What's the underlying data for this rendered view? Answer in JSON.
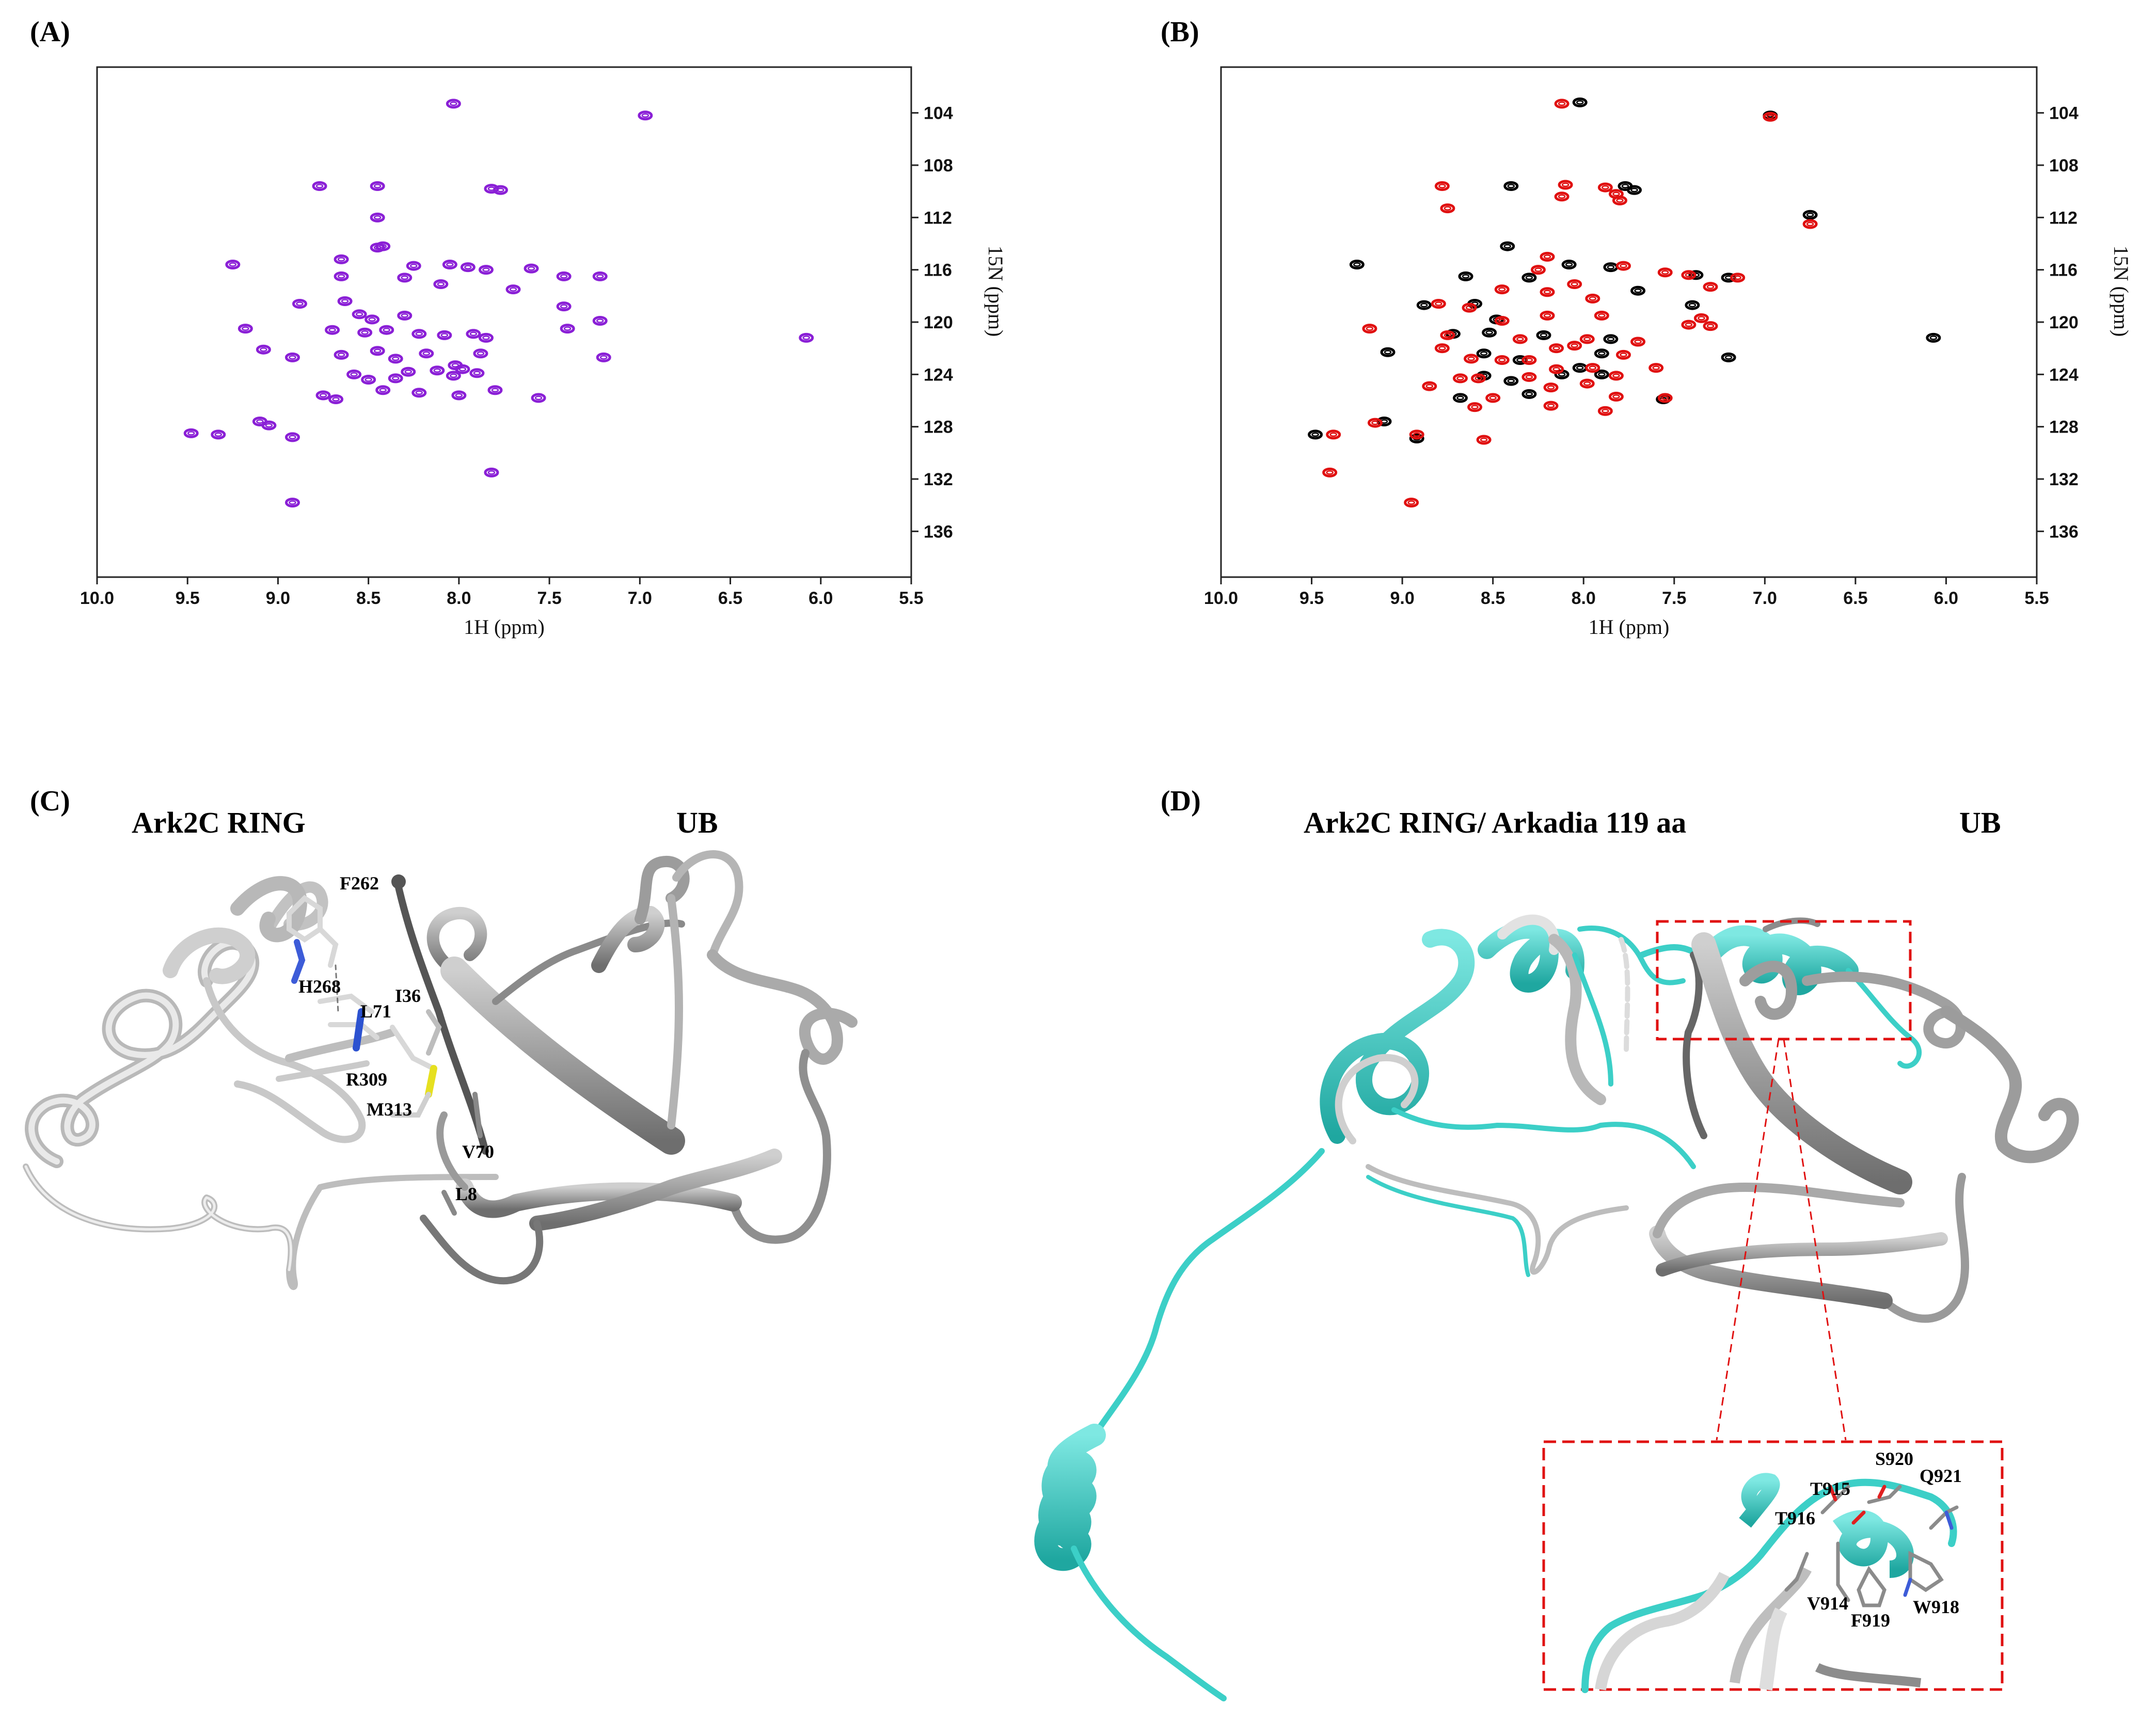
{
  "panels": {
    "a": {
      "label": "(A)"
    },
    "b": {
      "label": "(B)"
    },
    "c": {
      "label": "(C)",
      "title_left": "Ark2C RING",
      "title_right": "UB",
      "residues": [
        "F262",
        "H268",
        "L71",
        "I36",
        "R309",
        "M313",
        "V70",
        "L8"
      ]
    },
    "d": {
      "label": "(D)",
      "title_left": "Ark2C RING/ Arkadia 119 aa",
      "title_right": "UB",
      "inset_residues": [
        "S920",
        "Q921",
        "T915",
        "T916",
        "V914",
        "F919",
        "W918"
      ]
    }
  },
  "colors": {
    "purple": "#8a1fd6",
    "red": "#e01010",
    "black": "#000000",
    "cyan": "#3ccfc7",
    "gray": "#9a9a9a",
    "light_gray": "#d4d4d4",
    "dashed_red": "#e01010"
  },
  "chart_data": [
    {
      "type": "scatter",
      "panel": "(A)",
      "xlabel": "1H (ppm)",
      "ylabel": "15N (ppm)",
      "xlim": [
        10.0,
        5.5
      ],
      "ylim": [
        100.5,
        139.5
      ],
      "x_ticks": [
        "10.0",
        "9.5",
        "9.0",
        "8.5",
        "8.0",
        "7.5",
        "7.0",
        "6.5",
        "6.0",
        "5.5"
      ],
      "y_ticks": [
        "104",
        "108",
        "112",
        "116",
        "120",
        "124",
        "128",
        "132",
        "136"
      ],
      "series": [
        {
          "color": "#8a1fd6",
          "points": [
            [
              8.03,
              103.3
            ],
            [
              6.97,
              104.2
            ],
            [
              8.77,
              109.6
            ],
            [
              8.45,
              109.6
            ],
            [
              7.82,
              109.8
            ],
            [
              7.77,
              109.9
            ],
            [
              8.45,
              112.0
            ],
            [
              9.25,
              115.6
            ],
            [
              8.65,
              115.2
            ],
            [
              8.45,
              114.3
            ],
            [
              8.42,
              114.2
            ],
            [
              8.25,
              115.7
            ],
            [
              8.05,
              115.6
            ],
            [
              7.95,
              115.8
            ],
            [
              7.85,
              116.0
            ],
            [
              7.6,
              115.9
            ],
            [
              7.42,
              116.5
            ],
            [
              7.22,
              116.5
            ],
            [
              8.65,
              116.5
            ],
            [
              8.3,
              116.6
            ],
            [
              8.1,
              117.1
            ],
            [
              7.7,
              117.5
            ],
            [
              8.88,
              118.6
            ],
            [
              8.63,
              118.4
            ],
            [
              8.55,
              119.4
            ],
            [
              8.48,
              119.8
            ],
            [
              8.3,
              119.5
            ],
            [
              7.42,
              118.8
            ],
            [
              9.18,
              120.5
            ],
            [
              8.7,
              120.6
            ],
            [
              8.52,
              120.8
            ],
            [
              8.4,
              120.6
            ],
            [
              8.22,
              120.9
            ],
            [
              8.08,
              121.0
            ],
            [
              7.92,
              120.9
            ],
            [
              7.85,
              121.2
            ],
            [
              7.22,
              119.9
            ],
            [
              7.4,
              120.5
            ],
            [
              6.08,
              121.2
            ],
            [
              9.08,
              122.1
            ],
            [
              8.92,
              122.7
            ],
            [
              8.65,
              122.5
            ],
            [
              8.45,
              122.2
            ],
            [
              8.35,
              122.8
            ],
            [
              8.18,
              122.4
            ],
            [
              8.02,
              123.3
            ],
            [
              7.98,
              123.6
            ],
            [
              7.88,
              122.4
            ],
            [
              7.2,
              122.7
            ],
            [
              8.58,
              124.0
            ],
            [
              8.5,
              124.4
            ],
            [
              8.35,
              124.3
            ],
            [
              8.28,
              123.8
            ],
            [
              8.12,
              123.7
            ],
            [
              8.03,
              124.1
            ],
            [
              7.9,
              123.9
            ],
            [
              8.42,
              125.2
            ],
            [
              8.22,
              125.4
            ],
            [
              8.0,
              125.6
            ],
            [
              7.8,
              125.2
            ],
            [
              8.75,
              125.6
            ],
            [
              8.68,
              125.9
            ],
            [
              7.56,
              125.8
            ],
            [
              9.1,
              127.6
            ],
            [
              9.05,
              127.9
            ],
            [
              9.48,
              128.5
            ],
            [
              9.33,
              128.6
            ],
            [
              8.92,
              128.8
            ],
            [
              7.82,
              131.5
            ],
            [
              8.92,
              133.8
            ]
          ]
        }
      ]
    },
    {
      "type": "scatter",
      "panel": "(B)",
      "xlabel": "1H (ppm)",
      "ylabel": "15N (ppm)",
      "xlim": [
        10.0,
        5.5
      ],
      "ylim": [
        100.5,
        139.5
      ],
      "x_ticks": [
        "10.0",
        "9.5",
        "9.0",
        "8.5",
        "8.0",
        "7.5",
        "7.0",
        "6.5",
        "6.0",
        "5.5"
      ],
      "y_ticks": [
        "104",
        "108",
        "112",
        "116",
        "120",
        "124",
        "128",
        "132",
        "136"
      ],
      "series": [
        {
          "color": "#000000",
          "points": [
            [
              8.02,
              103.2
            ],
            [
              6.97,
              104.2
            ],
            [
              8.4,
              109.6
            ],
            [
              7.77,
              109.6
            ],
            [
              7.72,
              109.9
            ],
            [
              6.75,
              111.8
            ],
            [
              9.25,
              115.6
            ],
            [
              8.42,
              114.2
            ],
            [
              8.08,
              115.6
            ],
            [
              7.85,
              115.8
            ],
            [
              7.38,
              116.4
            ],
            [
              7.2,
              116.6
            ],
            [
              8.65,
              116.5
            ],
            [
              8.3,
              116.6
            ],
            [
              7.7,
              117.6
            ],
            [
              8.88,
              118.7
            ],
            [
              8.6,
              118.6
            ],
            [
              8.48,
              119.8
            ],
            [
              7.4,
              118.7
            ],
            [
              8.52,
              120.8
            ],
            [
              8.22,
              121.0
            ],
            [
              7.85,
              121.3
            ],
            [
              6.07,
              121.2
            ],
            [
              8.72,
              120.9
            ],
            [
              9.08,
              122.3
            ],
            [
              8.55,
              122.4
            ],
            [
              8.35,
              122.9
            ],
            [
              8.02,
              123.5
            ],
            [
              7.9,
              122.4
            ],
            [
              7.2,
              122.7
            ],
            [
              8.55,
              124.1
            ],
            [
              8.4,
              124.5
            ],
            [
              8.12,
              124.0
            ],
            [
              7.9,
              124.0
            ],
            [
              8.68,
              125.8
            ],
            [
              8.3,
              125.5
            ],
            [
              7.56,
              125.9
            ],
            [
              9.1,
              127.6
            ],
            [
              9.48,
              128.6
            ],
            [
              8.92,
              128.9
            ]
          ]
        },
        {
          "color": "#e01010",
          "points": [
            [
              8.12,
              103.3
            ],
            [
              6.97,
              104.3
            ],
            [
              8.78,
              109.6
            ],
            [
              8.1,
              109.5
            ],
            [
              7.88,
              109.7
            ],
            [
              7.82,
              110.2
            ],
            [
              8.75,
              111.3
            ],
            [
              8.12,
              110.4
            ],
            [
              7.8,
              110.7
            ],
            [
              6.75,
              112.5
            ],
            [
              8.2,
              115.0
            ],
            [
              8.25,
              116.0
            ],
            [
              7.78,
              115.7
            ],
            [
              7.55,
              116.2
            ],
            [
              7.42,
              116.4
            ],
            [
              7.15,
              116.6
            ],
            [
              7.3,
              117.3
            ],
            [
              8.45,
              117.5
            ],
            [
              8.05,
              117.1
            ],
            [
              8.2,
              117.7
            ],
            [
              7.95,
              118.2
            ],
            [
              8.8,
              118.6
            ],
            [
              8.63,
              118.9
            ],
            [
              8.45,
              119.9
            ],
            [
              8.2,
              119.5
            ],
            [
              7.9,
              119.5
            ],
            [
              7.35,
              119.7
            ],
            [
              7.3,
              120.3
            ],
            [
              7.42,
              120.2
            ],
            [
              9.18,
              120.5
            ],
            [
              8.75,
              121.0
            ],
            [
              8.35,
              121.3
            ],
            [
              8.05,
              121.8
            ],
            [
              7.98,
              121.3
            ],
            [
              7.7,
              121.5
            ],
            [
              8.78,
              122.0
            ],
            [
              8.62,
              122.8
            ],
            [
              8.45,
              122.9
            ],
            [
              8.3,
              122.9
            ],
            [
              8.15,
              122.0
            ],
            [
              7.95,
              123.5
            ],
            [
              7.78,
              122.5
            ],
            [
              7.6,
              123.5
            ],
            [
              8.68,
              124.3
            ],
            [
              8.58,
              124.3
            ],
            [
              8.3,
              124.2
            ],
            [
              8.15,
              123.6
            ],
            [
              7.98,
              124.7
            ],
            [
              7.82,
              124.1
            ],
            [
              8.85,
              124.9
            ],
            [
              8.5,
              125.8
            ],
            [
              8.18,
              125.0
            ],
            [
              7.82,
              125.7
            ],
            [
              7.55,
              125.8
            ],
            [
              8.6,
              126.5
            ],
            [
              8.18,
              126.4
            ],
            [
              7.88,
              126.8
            ],
            [
              9.38,
              128.6
            ],
            [
              9.15,
              127.7
            ],
            [
              8.92,
              128.6
            ],
            [
              8.55,
              129.0
            ],
            [
              9.4,
              131.5
            ],
            [
              8.95,
              133.8
            ]
          ]
        }
      ]
    }
  ]
}
